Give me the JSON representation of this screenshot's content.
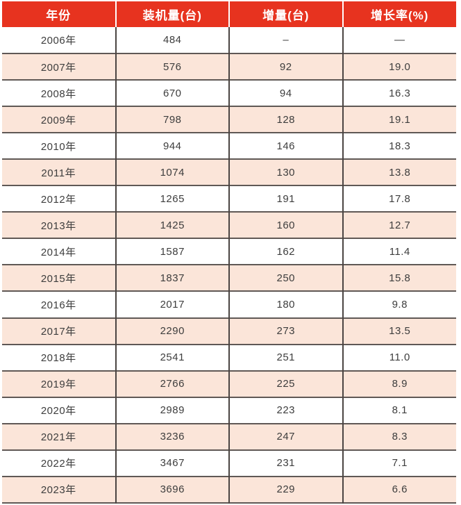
{
  "table": {
    "columns": [
      "年份",
      "装机量(台)",
      "增量(台)",
      "增长率(%)"
    ],
    "rows": [
      [
        "2006年",
        "484",
        "–",
        "—"
      ],
      [
        "2007年",
        "576",
        "92",
        "19.0"
      ],
      [
        "2008年",
        "670",
        "94",
        "16.3"
      ],
      [
        "2009年",
        "798",
        "128",
        "19.1"
      ],
      [
        "2010年",
        "944",
        "146",
        "18.3"
      ],
      [
        "2011年",
        "1074",
        "130",
        "13.8"
      ],
      [
        "2012年",
        "1265",
        "191",
        "17.8"
      ],
      [
        "2013年",
        "1425",
        "160",
        "12.7"
      ],
      [
        "2014年",
        "1587",
        "162",
        "11.4"
      ],
      [
        "2015年",
        "1837",
        "250",
        "15.8"
      ],
      [
        "2016年",
        "2017",
        "180",
        "9.8"
      ],
      [
        "2017年",
        "2290",
        "273",
        "13.5"
      ],
      [
        "2018年",
        "2541",
        "251",
        "11.0"
      ],
      [
        "2019年",
        "2766",
        "225",
        "8.9"
      ],
      [
        "2020年",
        "2989",
        "223",
        "8.1"
      ],
      [
        "2021年",
        "3236",
        "247",
        "8.3"
      ],
      [
        "2022年",
        "3467",
        "231",
        "7.1"
      ],
      [
        "2023年",
        "3696",
        "229",
        "6.6"
      ]
    ]
  },
  "chart_data": {
    "type": "table",
    "columns": [
      "年份",
      "装机量(台)",
      "增量(台)",
      "增长率(%)"
    ],
    "years": [
      "2006年",
      "2007年",
      "2008年",
      "2009年",
      "2010年",
      "2011年",
      "2012年",
      "2013年",
      "2014年",
      "2015年",
      "2016年",
      "2017年",
      "2018年",
      "2019年",
      "2020年",
      "2021年",
      "2022年",
      "2023年"
    ],
    "installed_units": [
      484,
      576,
      670,
      798,
      944,
      1074,
      1265,
      1425,
      1587,
      1837,
      2017,
      2290,
      2541,
      2766,
      2989,
      3236,
      3467,
      3696
    ],
    "increment_units": [
      null,
      92,
      94,
      128,
      146,
      130,
      191,
      160,
      162,
      250,
      180,
      273,
      251,
      225,
      223,
      247,
      231,
      229
    ],
    "growth_rate_pct": [
      null,
      19.0,
      16.3,
      19.1,
      18.3,
      13.8,
      17.8,
      12.7,
      11.4,
      15.8,
      9.8,
      13.5,
      11.0,
      8.9,
      8.1,
      8.3,
      7.1,
      6.6
    ],
    "layout": "alternating row stripes, red header"
  },
  "colors": {
    "header_bg": "#e7331f",
    "header_text": "#ffffff",
    "row_bg": "#ffffff",
    "row_alt_bg": "#fbe5d9",
    "grid_line": "#5f5855",
    "col_line": "#4a4442",
    "cell_text": "#3d3d3d"
  }
}
